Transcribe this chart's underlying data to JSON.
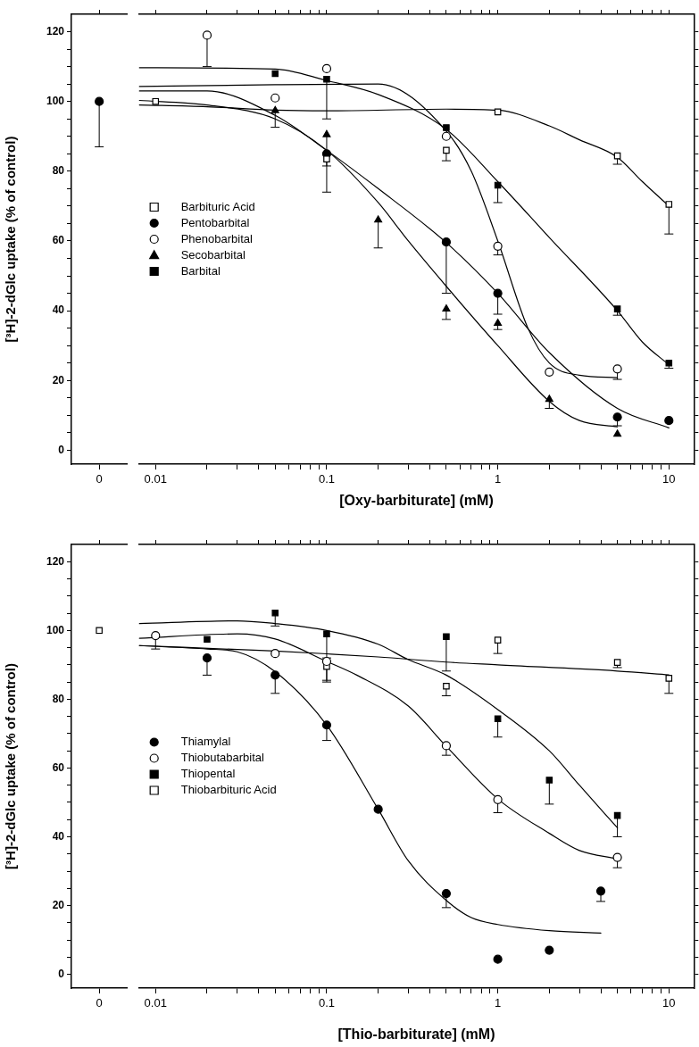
{
  "chart_data": [
    {
      "type": "scatter",
      "categories": [
        "0"
      ],
      "ylabel": "[³H]-2-dGlc uptake (% of control)",
      "ylim": [
        -4,
        125
      ],
      "yticks": [
        0,
        {
          "value": 5,
          "label": null
        },
        {
          "value": 10,
          "label": null
        },
        {
          "value": 15,
          "label": null
        },
        20,
        {
          "value": 25,
          "label": null
        },
        {
          "value": 30,
          "label": null
        },
        {
          "value": 35,
          "label": null
        },
        40,
        {
          "value": 45,
          "label": null
        },
        {
          "value": 50,
          "label": null
        },
        {
          "value": 55,
          "label": null
        },
        60,
        {
          "value": 65,
          "label": null
        },
        {
          "value": 70,
          "label": null
        },
        {
          "value": 75,
          "label": null
        },
        80,
        {
          "value": 85,
          "label": null
        },
        {
          "value": 90,
          "label": null
        },
        {
          "value": 95,
          "label": null
        },
        100,
        {
          "value": 105,
          "label": null
        },
        {
          "value": 110,
          "label": null
        },
        {
          "value": 115,
          "label": null
        },
        120
      ],
      "series": [
        {
          "color": "#000000",
          "marker": "circle",
          "values": [
            100
          ],
          "errors": [
            [
              87,
              100
            ]
          ]
        }
      ]
    },
    {
      "type": "scatter",
      "log": "x",
      "xlabel": "[Oxy-barbiturate] (mM)",
      "xlim": [
        0.008,
        14
      ],
      "xticks": [
        0.01,
        {
          "value": 0.02,
          "label": null
        },
        {
          "value": 0.03,
          "label": null
        },
        {
          "value": 0.04,
          "label": null
        },
        {
          "value": 0.05,
          "label": null
        },
        {
          "value": 0.06,
          "label": null
        },
        {
          "value": 0.07,
          "label": null
        },
        {
          "value": 0.08,
          "label": null
        },
        {
          "value": 0.09,
          "label": null
        },
        0.1,
        {
          "value": 0.2,
          "label": null
        },
        {
          "value": 0.3,
          "label": null
        },
        {
          "value": 0.4,
          "label": null
        },
        {
          "value": 0.5,
          "label": null
        },
        {
          "value": 0.6,
          "label": null
        },
        {
          "value": 0.7,
          "label": null
        },
        {
          "value": 0.8,
          "label": null
        },
        {
          "value": 0.9,
          "label": null
        },
        1,
        {
          "value": 2,
          "label": null
        },
        {
          "value": 3,
          "label": null
        },
        {
          "value": 4,
          "label": null
        },
        {
          "value": 5,
          "label": null
        },
        {
          "value": 6,
          "label": null
        },
        {
          "value": 7,
          "label": null
        },
        {
          "value": 8,
          "label": null
        },
        {
          "value": 9,
          "label": null
        },
        10
      ],
      "ylim": [
        -4,
        125
      ],
      "yticks": [
        0,
        {
          "value": 5,
          "label": null
        },
        {
          "value": 10,
          "label": null
        },
        {
          "value": 15,
          "label": null
        },
        20,
        {
          "value": 25,
          "label": null
        },
        {
          "value": 30,
          "label": null
        },
        {
          "value": 35,
          "label": null
        },
        40,
        {
          "value": 45,
          "label": null
        },
        {
          "value": 50,
          "label": null
        },
        {
          "value": 55,
          "label": null
        },
        60,
        {
          "value": 65,
          "label": null
        },
        {
          "value": 70,
          "label": null
        },
        {
          "value": 75,
          "label": null
        },
        80,
        {
          "value": 85,
          "label": null
        },
        {
          "value": 90,
          "label": null
        },
        {
          "value": 95,
          "label": null
        },
        100,
        {
          "value": 105,
          "label": null
        },
        {
          "value": 110,
          "label": null
        },
        {
          "value": 115,
          "label": null
        },
        120
      ],
      "tick_labels": "x",
      "legend": "left",
      "series": [
        {
          "type": "line",
          "color": "#000000",
          "x": [
            0.008,
            0.02,
            0.05,
            0.1,
            0.5,
            1,
            2,
            3,
            5,
            7,
            10
          ],
          "values": [
            99,
            98.5,
            97.5,
            97.3,
            97.8,
            97.5,
            93,
            89,
            84,
            77,
            70
          ]
        },
        {
          "type": "line",
          "color": "#000000",
          "x": [
            0.008,
            0.02,
            0.05,
            0.1,
            0.2,
            0.5,
            1,
            2,
            5,
            10
          ],
          "values": [
            103,
            103,
            96,
            86,
            75,
            59.5,
            45,
            28,
            12,
            6.4
          ]
        },
        {
          "type": "line",
          "color": "#000000",
          "x": [
            0.008,
            0.05,
            0.2,
            0.5,
            0.7,
            1,
            1.5,
            2,
            3,
            5
          ],
          "values": [
            104.3,
            104.8,
            105,
            91.5,
            80,
            60,
            35,
            25,
            21.5,
            20.8
          ]
        },
        {
          "type": "line",
          "color": "#000000",
          "x": [
            0.008,
            0.02,
            0.05,
            0.1,
            0.2,
            0.3,
            0.5,
            1,
            2,
            3,
            5
          ],
          "values": [
            100.3,
            99,
            95,
            86,
            71,
            60,
            47,
            30,
            14,
            8.5,
            6.7
          ]
        },
        {
          "type": "line",
          "color": "#000000",
          "x": [
            0.008,
            0.05,
            0.1,
            0.2,
            0.5,
            1,
            2,
            5,
            7,
            10
          ],
          "values": [
            109.7,
            109.3,
            106,
            102,
            92,
            77,
            61,
            40,
            31,
            24.5
          ]
        },
        {
          "name": "Barbituric Acid",
          "color": "#ffffff",
          "marker": "square",
          "x": [
            0.01,
            0.1,
            0.5,
            1,
            5,
            10
          ],
          "values": [
            100,
            83.5,
            86,
            97,
            84.4,
            70.5
          ],
          "errors": [
            null,
            null,
            [
              83,
              86
            ],
            null,
            [
              82,
              84.4
            ],
            [
              62,
              70.5
            ]
          ]
        },
        {
          "name": "Pentobarbital",
          "color": "#000000",
          "marker": "circle",
          "x": [
            0.1,
            0.5,
            1,
            5,
            10
          ],
          "values": [
            85,
            59.7,
            45,
            9.5,
            8.5
          ],
          "errors": [
            [
              74,
              85
            ],
            [
              45,
              59.7
            ],
            [
              39,
              45
            ],
            [
              7,
              9.5
            ],
            null
          ]
        },
        {
          "name": "Phenobarbital",
          "color": "#ffffff",
          "marker": "circle",
          "x": [
            0.02,
            0.05,
            0.1,
            0.5,
            1,
            2,
            5
          ],
          "values": [
            119,
            101,
            109.4,
            90,
            58.5,
            22.4,
            23.3
          ],
          "errors": [
            [
              110,
              119
            ],
            null,
            null,
            null,
            [
              56,
              58.5
            ],
            null,
            [
              20.3,
              23.3
            ]
          ]
        },
        {
          "name": "Secobarbital",
          "color": "#000000",
          "marker": "triangle",
          "x": [
            0.05,
            0.1,
            0.2,
            0.5,
            1,
            2,
            5
          ],
          "values": [
            97.4,
            90.5,
            66,
            40.5,
            36.4,
            14.6,
            4.6
          ],
          "errors": [
            [
              92.6,
              97.4
            ],
            [
              81.5,
              90.5
            ],
            [
              58,
              66
            ],
            [
              37.5,
              40.5
            ],
            [
              34.6,
              36.4
            ],
            [
              12,
              14.6
            ],
            null
          ]
        },
        {
          "name": "Barbital",
          "color": "#000000",
          "marker": "square",
          "x": [
            0.05,
            0.1,
            0.5,
            1,
            5,
            10
          ],
          "values": [
            108,
            106.4,
            92.5,
            76,
            40.5,
            25
          ],
          "errors": [
            null,
            [
              95,
              106.4
            ],
            null,
            [
              71,
              76
            ],
            [
              38.7,
              40.5
            ],
            [
              23.5,
              25
            ]
          ]
        }
      ]
    },
    {
      "type": "scatter",
      "categories": [
        "0"
      ],
      "ylabel": "[³H]-2-dGlc uptake (% of control)",
      "ylim": [
        -4,
        125
      ],
      "yticks": [
        0,
        {
          "value": 5,
          "label": null
        },
        {
          "value": 10,
          "label": null
        },
        {
          "value": 15,
          "label": null
        },
        20,
        {
          "value": 25,
          "label": null
        },
        {
          "value": 30,
          "label": null
        },
        {
          "value": 35,
          "label": null
        },
        40,
        {
          "value": 45,
          "label": null
        },
        {
          "value": 50,
          "label": null
        },
        {
          "value": 55,
          "label": null
        },
        60,
        {
          "value": 65,
          "label": null
        },
        {
          "value": 70,
          "label": null
        },
        {
          "value": 75,
          "label": null
        },
        80,
        {
          "value": 85,
          "label": null
        },
        {
          "value": 90,
          "label": null
        },
        {
          "value": 95,
          "label": null
        },
        100,
        {
          "value": 105,
          "label": null
        },
        {
          "value": 110,
          "label": null
        },
        {
          "value": 115,
          "label": null
        },
        120
      ],
      "series": [
        {
          "color": "#ffffff",
          "marker": "square",
          "values": [
            100
          ]
        }
      ]
    },
    {
      "type": "scatter",
      "log": "x",
      "xlabel": "[Thio-barbiturate] (mM)",
      "xlim": [
        0.008,
        14
      ],
      "xticks": [
        0.01,
        {
          "value": 0.02,
          "label": null
        },
        {
          "value": 0.03,
          "label": null
        },
        {
          "value": 0.04,
          "label": null
        },
        {
          "value": 0.05,
          "label": null
        },
        {
          "value": 0.06,
          "label": null
        },
        {
          "value": 0.07,
          "label": null
        },
        {
          "value": 0.08,
          "label": null
        },
        {
          "value": 0.09,
          "label": null
        },
        0.1,
        {
          "value": 0.2,
          "label": null
        },
        {
          "value": 0.3,
          "label": null
        },
        {
          "value": 0.4,
          "label": null
        },
        {
          "value": 0.5,
          "label": null
        },
        {
          "value": 0.6,
          "label": null
        },
        {
          "value": 0.7,
          "label": null
        },
        {
          "value": 0.8,
          "label": null
        },
        {
          "value": 0.9,
          "label": null
        },
        1,
        {
          "value": 2,
          "label": null
        },
        {
          "value": 3,
          "label": null
        },
        {
          "value": 4,
          "label": null
        },
        {
          "value": 5,
          "label": null
        },
        {
          "value": 6,
          "label": null
        },
        {
          "value": 7,
          "label": null
        },
        {
          "value": 8,
          "label": null
        },
        {
          "value": 9,
          "label": null
        },
        10
      ],
      "ylim": [
        -4,
        125
      ],
      "yticks": [
        0,
        {
          "value": 5,
          "label": null
        },
        {
          "value": 10,
          "label": null
        },
        {
          "value": 15,
          "label": null
        },
        20,
        {
          "value": 25,
          "label": null
        },
        {
          "value": 30,
          "label": null
        },
        {
          "value": 35,
          "label": null
        },
        40,
        {
          "value": 45,
          "label": null
        },
        {
          "value": 50,
          "label": null
        },
        {
          "value": 55,
          "label": null
        },
        60,
        {
          "value": 65,
          "label": null
        },
        {
          "value": 70,
          "label": null
        },
        {
          "value": 75,
          "label": null
        },
        80,
        {
          "value": 85,
          "label": null
        },
        {
          "value": 90,
          "label": null
        },
        {
          "value": 95,
          "label": null
        },
        100,
        {
          "value": 105,
          "label": null
        },
        {
          "value": 110,
          "label": null
        },
        {
          "value": 115,
          "label": null
        },
        120
      ],
      "tick_labels": "x",
      "legend": "left",
      "series": [
        {
          "type": "line",
          "color": "#000000",
          "x": [
            0.008,
            0.02,
            0.03,
            0.05,
            0.1,
            0.2,
            0.3,
            0.5,
            0.7,
            1,
            2,
            4
          ],
          "values": [
            95.6,
            94.6,
            93.8,
            88,
            72.5,
            48,
            33,
            21.5,
            16.5,
            14.5,
            12.7,
            12
          ]
        },
        {
          "type": "line",
          "color": "#000000",
          "x": [
            0.008,
            0.03,
            0.05,
            0.1,
            0.15,
            0.3,
            0.5,
            1,
            2,
            3,
            5
          ],
          "values": [
            97.7,
            99,
            97.5,
            91,
            87,
            78,
            66.3,
            51,
            41,
            36,
            33.6
          ]
        },
        {
          "type": "line",
          "color": "#000000",
          "x": [
            0.008,
            0.03,
            0.05,
            0.1,
            0.2,
            0.3,
            0.5,
            1,
            2,
            3,
            5
          ],
          "values": [
            102,
            102.8,
            102,
            100,
            96,
            91.5,
            87,
            77,
            65,
            55,
            42.6
          ]
        },
        {
          "type": "line",
          "color": "#000000",
          "x": [
            0.008,
            0.05,
            0.1,
            0.2,
            0.5,
            1,
            5,
            10
          ],
          "values": [
            95.6,
            94,
            93.2,
            92.3,
            90.8,
            90,
            88.2,
            87.1
          ]
        },
        {
          "name": "Thiamylal",
          "color": "#000000",
          "marker": "circle",
          "x": [
            0.02,
            0.05,
            0.1,
            0.2,
            0.5,
            1,
            2,
            4
          ],
          "values": [
            92,
            87,
            72.5,
            48,
            23.5,
            4.4,
            7,
            24.2
          ],
          "errors": [
            [
              87,
              92
            ],
            [
              81.7,
              87
            ],
            [
              68,
              72.5
            ],
            null,
            [
              19.4,
              23.5
            ],
            null,
            null,
            [
              21.2,
              24.2
            ]
          ]
        },
        {
          "name": "Thiobutabarbital",
          "color": "#ffffff",
          "marker": "circle",
          "x": [
            0.01,
            0.05,
            0.1,
            0.5,
            1,
            5
          ],
          "values": [
            98.5,
            93.3,
            91,
            66.5,
            50.8,
            34
          ],
          "errors": [
            [
              94.6,
              98.5
            ],
            null,
            [
              85,
              91
            ],
            [
              63.7,
              66.5
            ],
            [
              47,
              50.8
            ],
            [
              31,
              34
            ]
          ]
        },
        {
          "name": "Thiopental",
          "color": "#000000",
          "marker": "square",
          "x": [
            0.02,
            0.05,
            0.1,
            0.5,
            1,
            2,
            5
          ],
          "values": [
            97.4,
            105.1,
            99,
            98.2,
            74.3,
            56.5,
            46.2
          ],
          "errors": [
            null,
            [
              101.3,
              105.1
            ],
            [
              92,
              99
            ],
            [
              88.2,
              98.2
            ],
            [
              69,
              74.3
            ],
            [
              49.5,
              56.5
            ],
            [
              40,
              46.2
            ]
          ]
        },
        {
          "name": "Thiobarbituric Acid",
          "color": "#ffffff",
          "marker": "square",
          "x": [
            0.1,
            0.5,
            1,
            5,
            10
          ],
          "values": [
            89.5,
            83.8,
            97.2,
            90.7,
            86.1
          ],
          "errors": [
            [
              85.5,
              89.5
            ],
            [
              81,
              83.8
            ],
            [
              93.3,
              97.2
            ],
            [
              89.2,
              90.7
            ],
            [
              81.7,
              86.1
            ]
          ]
        }
      ]
    }
  ]
}
